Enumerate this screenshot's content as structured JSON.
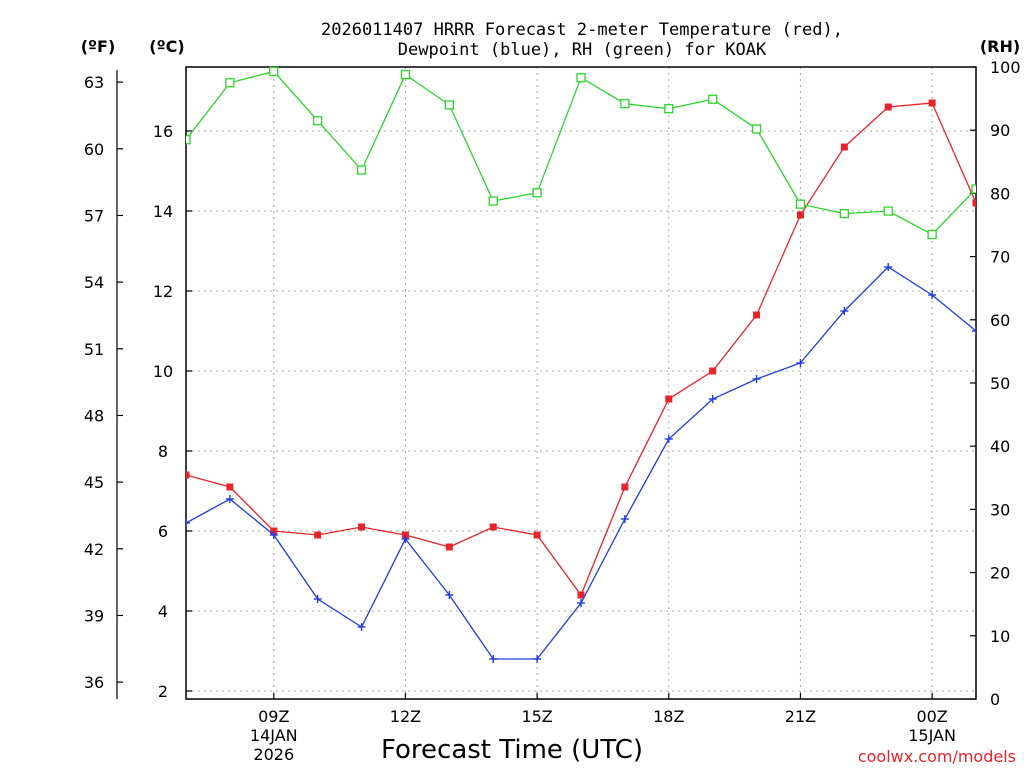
{
  "chart_data": {
    "type": "line",
    "title_lines": [
      "2026011407 HRRR Forecast 2-meter Temperature (red),",
      "Dewpoint (blue), RH (green) for KOAK"
    ],
    "xlabel": "Forecast Time (UTC)",
    "credit": "coolwx.com/models",
    "units": {
      "fahrenheit": "(ºF)",
      "celsius": "(ºC)",
      "rh": "(RH)"
    },
    "x_hours": [
      7,
      8,
      9,
      10,
      11,
      12,
      13,
      14,
      15,
      16,
      17,
      18,
      19,
      20,
      21,
      22,
      23,
      0,
      1
    ],
    "xlim": [
      7,
      25
    ],
    "x_ticks": [
      {
        "hour": 9,
        "label": "09Z",
        "sub1": "14JAN",
        "sub2": "2026"
      },
      {
        "hour": 12,
        "label": "12Z",
        "sub1": "",
        "sub2": ""
      },
      {
        "hour": 15,
        "label": "15Z",
        "sub1": "",
        "sub2": ""
      },
      {
        "hour": 18,
        "label": "18Z",
        "sub1": "",
        "sub2": ""
      },
      {
        "hour": 21,
        "label": "21Z",
        "sub1": "",
        "sub2": ""
      },
      {
        "hour": 24,
        "label": "00Z",
        "sub1": "15JAN",
        "sub2": ""
      }
    ],
    "celsius_axis": {
      "ylim": [
        1.8,
        17.6
      ],
      "ticks": [
        2,
        4,
        6,
        8,
        10,
        12,
        14,
        16
      ]
    },
    "fahrenheit_ticks": [
      36,
      39,
      42,
      45,
      48,
      51,
      54,
      57,
      60,
      63
    ],
    "rh_axis": {
      "ylim": [
        0,
        100
      ],
      "ticks": [
        0,
        10,
        20,
        30,
        40,
        50,
        60,
        70,
        80,
        90,
        100
      ]
    },
    "series": [
      {
        "name": "Temperature",
        "color": "#e8242b",
        "marker": "filled-square",
        "axis": "celsius",
        "values": [
          7.4,
          7.1,
          6.0,
          5.9,
          6.1,
          5.9,
          5.6,
          6.1,
          5.9,
          4.4,
          7.1,
          9.3,
          10.0,
          11.4,
          13.9,
          15.6,
          16.6,
          16.7,
          14.2
        ]
      },
      {
        "name": "Dewpoint",
        "color": "#1e3cdc",
        "marker": "plus",
        "axis": "celsius",
        "values": [
          6.2,
          6.8,
          5.9,
          4.3,
          3.6,
          5.8,
          4.4,
          2.8,
          2.8,
          4.2,
          6.3,
          8.3,
          9.3,
          9.8,
          10.2,
          11.5,
          12.6,
          11.9,
          11.0
        ]
      },
      {
        "name": "RH",
        "color": "#2bd62b",
        "marker": "open-square",
        "axis": "rh",
        "values": [
          88.5,
          97.5,
          99.3,
          91.5,
          83.7,
          98.8,
          94.0,
          78.8,
          80.1,
          98.3,
          94.2,
          93.4,
          94.9,
          90.2,
          78.3,
          76.8,
          77.2,
          73.5,
          80.7
        ]
      }
    ]
  }
}
